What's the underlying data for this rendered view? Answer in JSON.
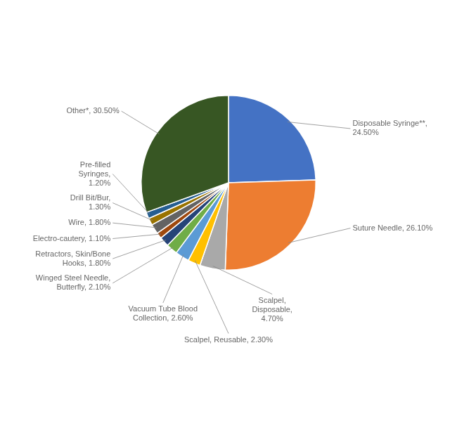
{
  "chart_data": {
    "type": "pie",
    "categories": [
      "Disposable Syringe**,\n24.50%",
      "Suture Needle, 26.10%",
      "Scalpel,\nDisposable,\n4.70%",
      "Scalpel, Reusable, 2.30%",
      "Vacuum Tube Blood\nCollection, 2.60%",
      "Winged Steel Needle,\nButterfly, 2.10%",
      "Retractors, Skin/Bone\nHooks, 1.80%",
      "Electro-cautery, 1.10%",
      "Wire, 1.80%",
      "Drill Bit/Bur,\n1.30%",
      "Pre-filled\nSyringes,\n1.20%",
      "Other*, 30.50%"
    ],
    "values": [
      24.5,
      26.1,
      4.7,
      2.3,
      2.6,
      2.1,
      1.8,
      1.1,
      1.8,
      1.3,
      1.2,
      30.5
    ],
    "colors": [
      "#4472C4",
      "#ED7D31",
      "#A9A9A9",
      "#FFC000",
      "#5B9BD5",
      "#70AD47",
      "#264478",
      "#9E480E",
      "#636363",
      "#997300",
      "#255E91",
      "#375623"
    ]
  }
}
